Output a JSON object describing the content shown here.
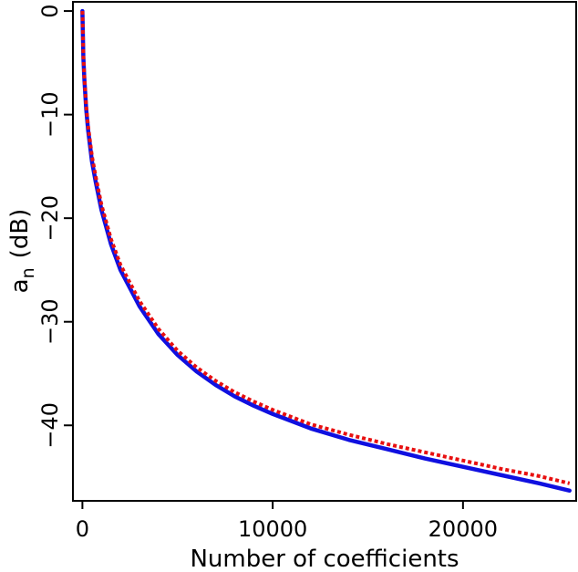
{
  "chart_data": {
    "type": "line",
    "title": "",
    "xlabel": "Number of coefficients",
    "ylabel_main": "a",
    "ylabel_sub": "n",
    "ylabel_unit": "(dB)",
    "xlim": [
      -450,
      25900
    ],
    "ylim": [
      -47.2,
      0.8
    ],
    "xticks": [
      0,
      10000,
      20000
    ],
    "xtick_labels": [
      "0",
      "10000",
      "20000"
    ],
    "yticks": [
      0,
      -10,
      -20,
      -30,
      -40
    ],
    "ytick_labels": [
      "0",
      "−10",
      "−20",
      "−30",
      "−40"
    ],
    "grid": false,
    "series": [
      {
        "color": "#1010e0",
        "style": "solid",
        "x": [
          0,
          50,
          100,
          200,
          300,
          500,
          700,
          1000,
          1500,
          2000,
          3000,
          4000,
          5000,
          6000,
          7000,
          8000,
          9000,
          10000,
          12000,
          14000,
          16000,
          18000,
          20000,
          22000,
          24000,
          25600
        ],
        "y": [
          0,
          -4.5,
          -6.5,
          -9.5,
          -11.5,
          -14.5,
          -16.5,
          -19.2,
          -22.5,
          -25.0,
          -28.5,
          -31.2,
          -33.2,
          -34.8,
          -36.1,
          -37.2,
          -38.1,
          -38.9,
          -40.3,
          -41.4,
          -42.3,
          -43.2,
          -44.0,
          -44.8,
          -45.6,
          -46.3
        ]
      },
      {
        "color": "#e81010",
        "style": "dotted",
        "x": [
          0,
          50,
          100,
          200,
          300,
          500,
          700,
          1000,
          1500,
          2000,
          3000,
          4000,
          5000,
          6000,
          7000,
          8000,
          9000,
          10000,
          12000,
          14000,
          16000,
          18000,
          20000,
          22000,
          24000,
          25600
        ],
        "y": [
          0,
          -4.3,
          -6.3,
          -9.2,
          -11.1,
          -14.0,
          -16.0,
          -18.7,
          -22.0,
          -24.5,
          -28.0,
          -30.7,
          -32.8,
          -34.4,
          -35.7,
          -36.8,
          -37.7,
          -38.5,
          -39.9,
          -40.9,
          -41.8,
          -42.6,
          -43.4,
          -44.2,
          -44.9,
          -45.6
        ]
      }
    ]
  }
}
